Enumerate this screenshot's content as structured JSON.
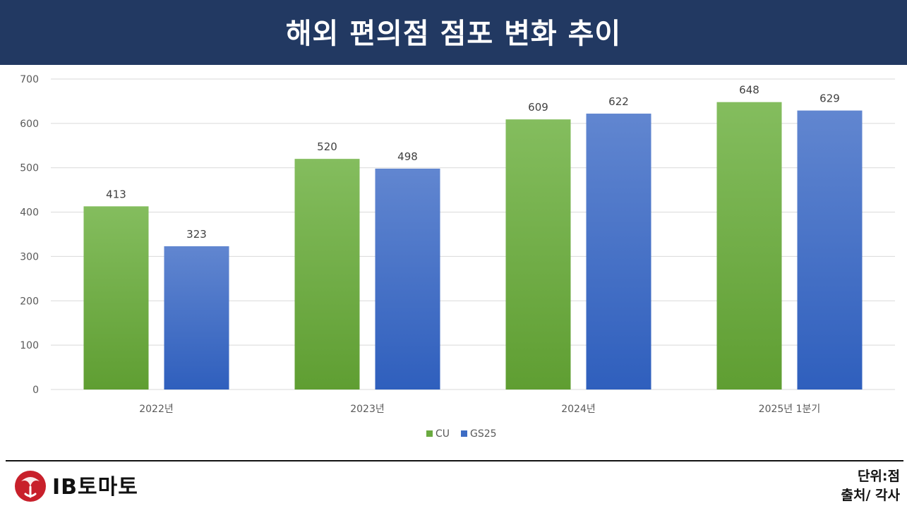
{
  "header": {
    "title": "해외 편의점 점포 변화 추이"
  },
  "chart_data": {
    "type": "bar",
    "title": "해외 편의점 점포 변화 추이",
    "categories": [
      "2022년",
      "2023년",
      "2024년",
      "2025년 1분기"
    ],
    "series": [
      {
        "name": "CU",
        "values": [
          413,
          520,
          609,
          648
        ],
        "color": "#6aaa40"
      },
      {
        "name": "GS25",
        "values": [
          323,
          498,
          622,
          629
        ],
        "color": "#3d6cc4"
      }
    ],
    "ylim": [
      0,
      700
    ],
    "yticks": [
      0,
      100,
      200,
      300,
      400,
      500,
      600,
      700
    ],
    "grid": true,
    "legend_position": "bottom-center",
    "xlabel": "",
    "ylabel": ""
  },
  "footer": {
    "logo_text": "IB토마토",
    "unit": "단위:점",
    "source": "출처/ 각사"
  }
}
